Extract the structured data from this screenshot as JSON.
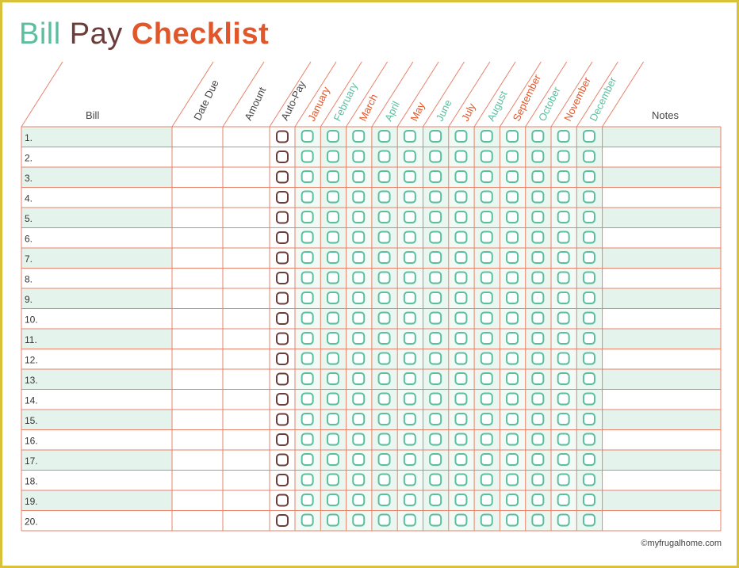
{
  "title": {
    "word1": "Bill",
    "word2": "Pay",
    "word3": "Checklist"
  },
  "headers": {
    "bill": "Bill",
    "date_due": "Date Due",
    "amount": "Amount",
    "autopay": "Auto-Pay",
    "notes": "Notes"
  },
  "months": [
    {
      "label": "January",
      "color": "#e2572a"
    },
    {
      "label": "February",
      "color": "#5bbf9f"
    },
    {
      "label": "March",
      "color": "#e2572a"
    },
    {
      "label": "April",
      "color": "#5bbf9f"
    },
    {
      "label": "May",
      "color": "#e2572a"
    },
    {
      "label": "June",
      "color": "#5bbf9f"
    },
    {
      "label": "July",
      "color": "#e2572a"
    },
    {
      "label": "August",
      "color": "#5bbf9f"
    },
    {
      "label": "September",
      "color": "#e2572a"
    },
    {
      "label": "October",
      "color": "#5bbf9f"
    },
    {
      "label": "November",
      "color": "#e2572a"
    },
    {
      "label": "December",
      "color": "#5bbf9f"
    }
  ],
  "rows": [
    "1.",
    "2.",
    "3.",
    "4.",
    "5.",
    "6.",
    "7.",
    "8.",
    "9.",
    "10.",
    "11.",
    "12.",
    "13.",
    "14.",
    "15.",
    "16.",
    "17.",
    "18.",
    "19.",
    "20."
  ],
  "footer": {
    "copyright": "©myfrugalhome.com"
  },
  "colors": {
    "grid_line": "#e8826a",
    "stripe": "#e4f4ec",
    "checkbox_teal": "#5bbf9f",
    "checkbox_brown": "#6a3d3a",
    "border_gold": "#d9c23a"
  }
}
